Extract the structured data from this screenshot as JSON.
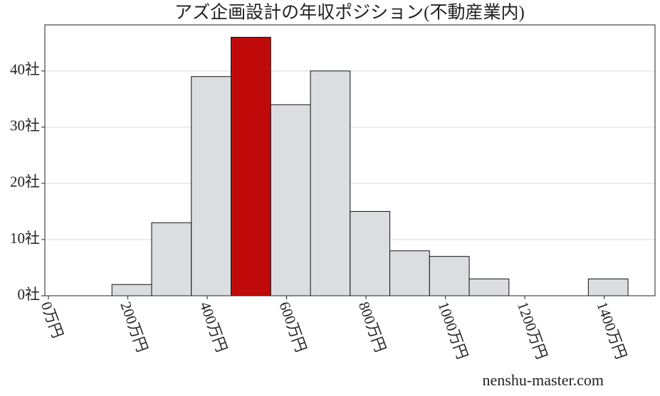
{
  "chart_data": {
    "type": "histogram",
    "title": "アズ企画設計の年収ポジション(不動産業内)",
    "watermark": "nenshu-master.com",
    "bins": [
      160,
      260,
      360,
      460,
      560,
      660,
      760,
      860,
      960,
      1060,
      1160,
      1260,
      1360,
      1460
    ],
    "values": [
      2,
      13,
      39,
      46,
      34,
      40,
      15,
      8,
      7,
      3,
      0,
      0,
      3
    ],
    "colors": [
      "#dcdde0",
      "#dcdde0",
      "#dcdde0",
      "#c00a0a",
      "#dcdde0",
      "#dcdde0",
      "#dcdde0",
      "#dcdde0",
      "#dcdde0",
      "#dcdde0",
      "#dcdde0",
      "#dcdde0",
      "#dcdde0"
    ],
    "xlim": [
      -9,
      1528
    ],
    "xticks": [
      {
        "value": 0,
        "label": "0万円"
      },
      {
        "value": 200,
        "label": "200万円"
      },
      {
        "value": 400,
        "label": "400万円"
      },
      {
        "value": 600,
        "label": "600万円"
      },
      {
        "value": 800,
        "label": "800万円"
      },
      {
        "value": 1000,
        "label": "1000万円"
      },
      {
        "value": 1200,
        "label": "1200万円"
      },
      {
        "value": 1400,
        "label": "1400万円"
      }
    ],
    "ylim": [
      0,
      48.2
    ],
    "yticks": [
      {
        "value": 0,
        "label": "0社"
      },
      {
        "value": 10,
        "label": "10社"
      },
      {
        "value": 20,
        "label": "20社"
      },
      {
        "value": 30,
        "label": "30社"
      },
      {
        "value": 40,
        "label": "40社"
      }
    ],
    "grid": true
  }
}
